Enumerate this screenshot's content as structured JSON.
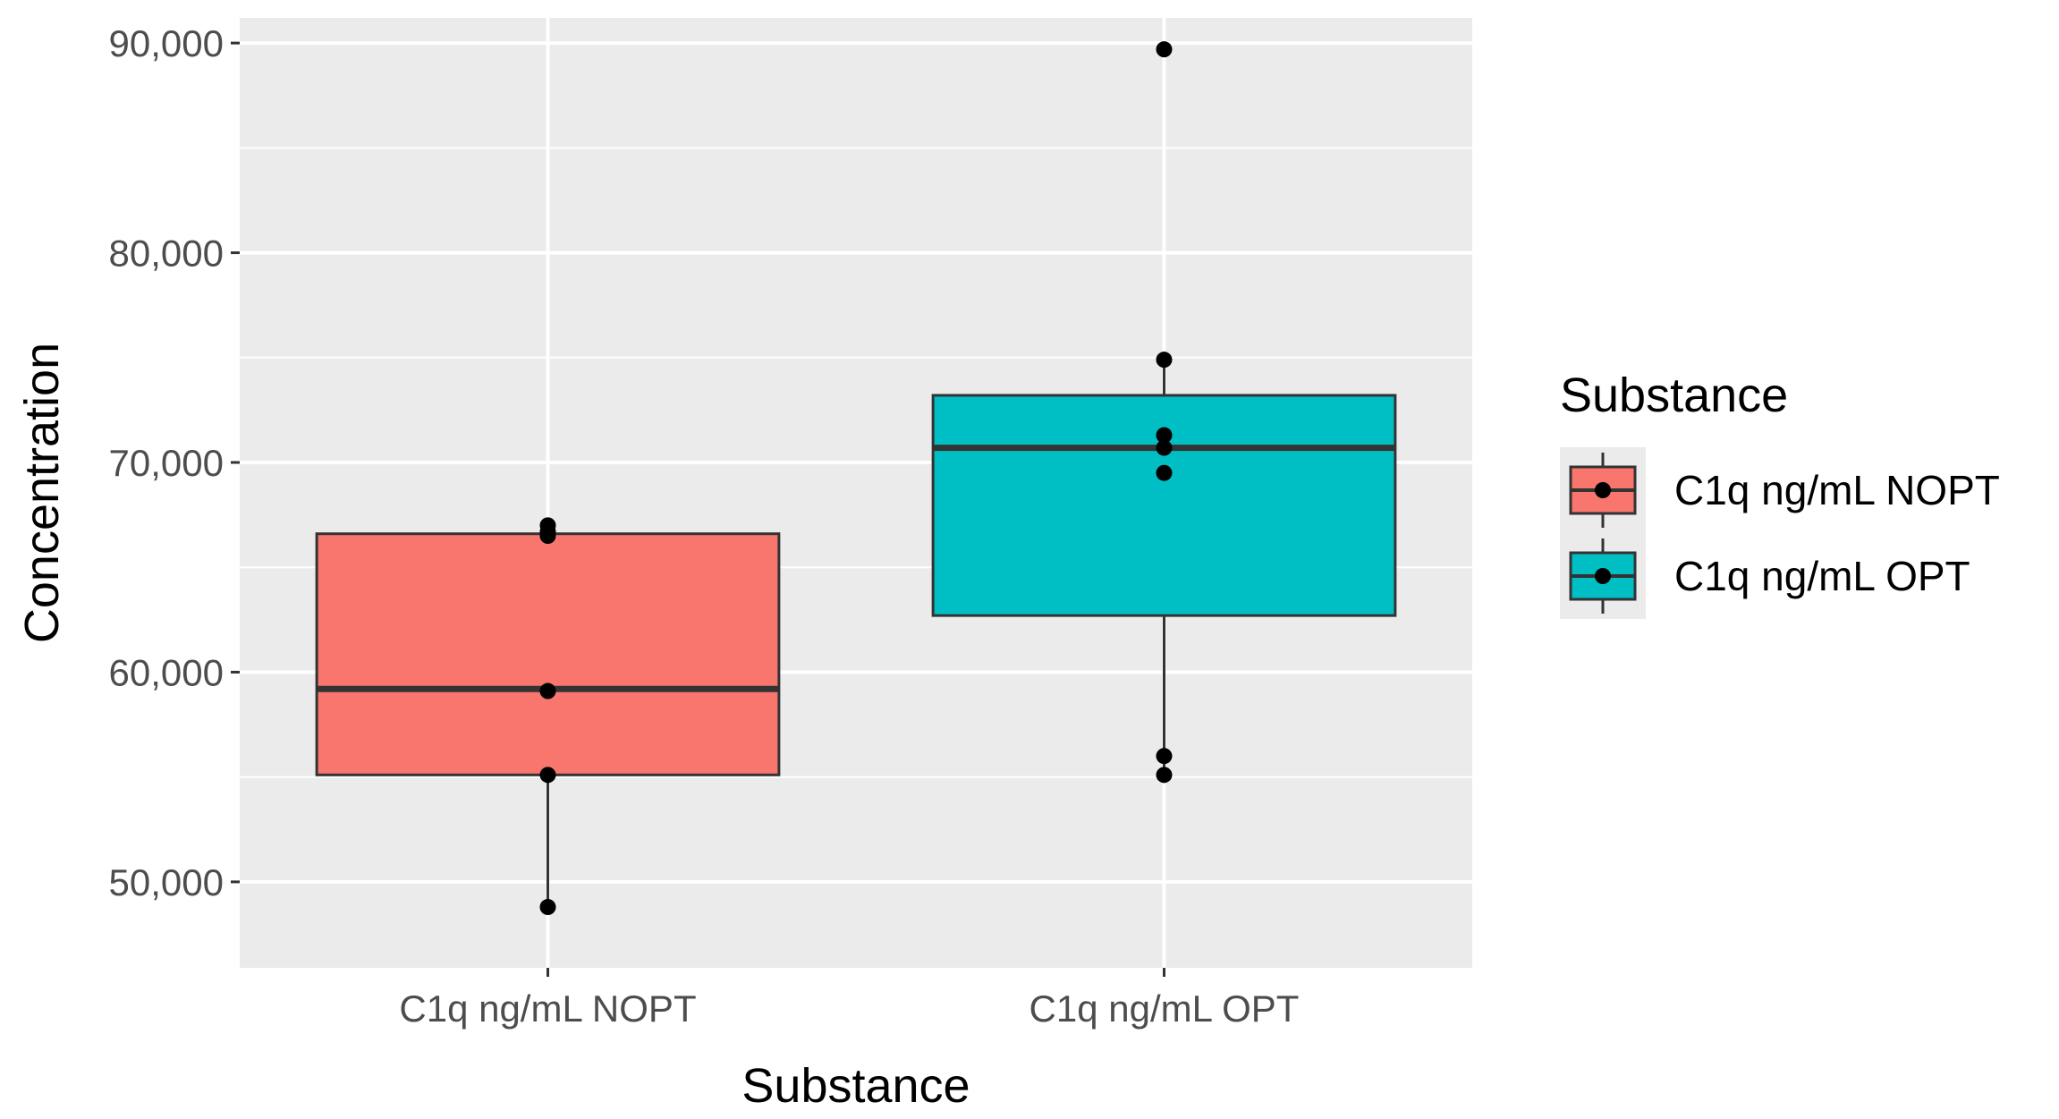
{
  "chart_data": {
    "type": "box",
    "xlabel": "Substance",
    "ylabel": "Concentration",
    "ylim": [
      45900,
      91200
    ],
    "yticks": [
      50000,
      60000,
      70000,
      80000,
      90000
    ],
    "ytick_labels": [
      "50,000",
      "60,000",
      "70,000",
      "80,000",
      "90,000"
    ],
    "categories": [
      "C1q ng/mL NOPT",
      "C1q ng/mL OPT"
    ],
    "grid": true,
    "legend": {
      "title": "Substance",
      "position": "right",
      "entries": [
        "C1q ng/mL NOPT",
        "C1q ng/mL OPT"
      ]
    },
    "series": [
      {
        "name": "C1q ng/mL NOPT",
        "color": "#F8766D",
        "whisker_low": 48800,
        "q1": 55100,
        "median": 59200,
        "q3": 66600,
        "whisker_high": 67100,
        "points": [
          48800,
          55100,
          59100,
          66500,
          66700,
          67000
        ]
      },
      {
        "name": "C1q ng/mL OPT",
        "color": "#00BFC4",
        "whisker_low": 55100,
        "q1": 62700,
        "median": 70700,
        "q3": 73200,
        "whisker_high": 74900,
        "points": [
          89700,
          74900,
          71300,
          70700,
          69500,
          56000,
          55100
        ]
      }
    ]
  },
  "colors": {
    "panel_background": "#EBEBEB",
    "grid_major": "#FFFFFF",
    "box_outline": "#333333",
    "point": "#000000"
  }
}
